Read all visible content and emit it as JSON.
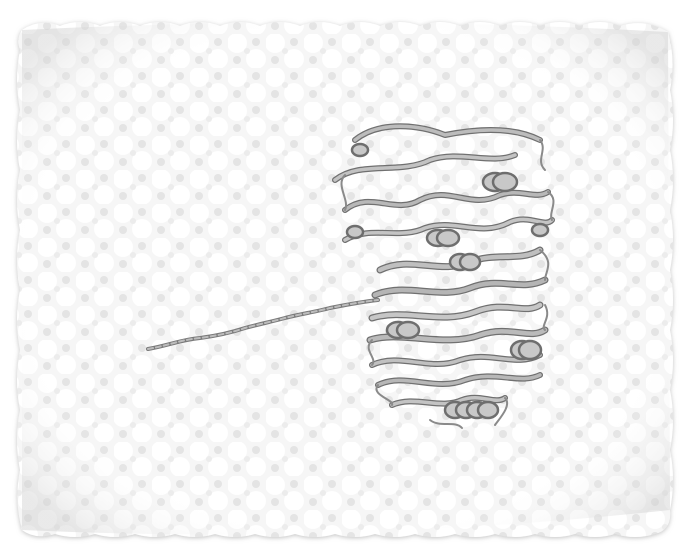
{
  "scene": {
    "background_color": "#ffffff",
    "slab_color": "#f3f3f3",
    "slab_shadow_color": "#d2d2d2",
    "protein_color": "#a9a9a9",
    "protein_edge_color": "#6e6e6e",
    "subject": "protein-ribbon-structure-on-membrane-surface"
  }
}
